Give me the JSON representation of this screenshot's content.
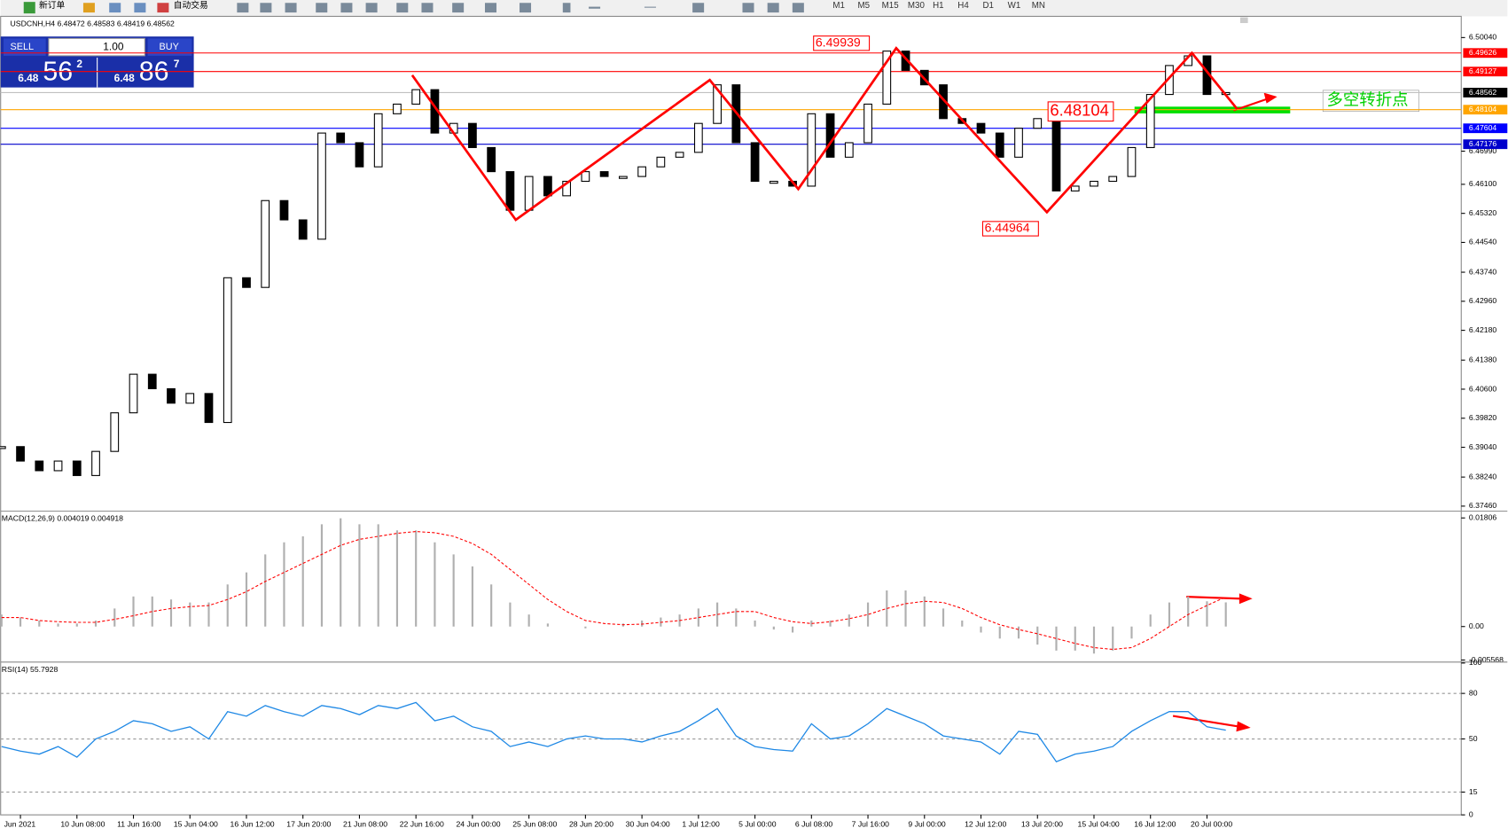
{
  "toolbar": {
    "new_order": "新订单",
    "auto_trading": "自动交易",
    "timeframes": [
      "M1",
      "M5",
      "M15",
      "M30",
      "H1",
      "H4",
      "D1",
      "W1",
      "MN"
    ]
  },
  "trade_panel": {
    "sell": "SELL",
    "lot": "1.00",
    "buy": "BUY",
    "bid_prefix": "6.48",
    "bid_big": "56",
    "bid_sup": "2",
    "ask_prefix": "6.48",
    "ask_big": "86",
    "ask_sup": "7"
  },
  "chart_data": [
    {
      "type": "candlestick",
      "title": "USDCNH,H4 6.48472 6.48583 6.48419 6.48562",
      "categories": [
        null,
        "Jun 2021",
        null,
        null,
        "10 Jun 08:00",
        null,
        null,
        "11 Jun 16:00",
        null,
        null,
        "15 Jun 04:00",
        null,
        null,
        "16 Jun 12:00",
        null,
        null,
        "17 Jun 20:00",
        null,
        null,
        "21 Jun 08:00",
        null,
        null,
        "22 Jun 16:00",
        null,
        null,
        "24 Jun 00:00",
        null,
        null,
        "25 Jun 08:00",
        null,
        null,
        "28 Jun 20:00",
        null,
        null,
        "30 Jun 04:00",
        null,
        null,
        "1 Jul 12:00",
        null,
        null,
        "5 Jul 00:00",
        null,
        null,
        "6 Jul 08:00",
        null,
        null,
        "7 Jul 16:00",
        null,
        null,
        "9 Jul 00:00",
        null,
        null,
        "12 Jul 12:00",
        null,
        null,
        "13 Jul 20:00",
        null,
        null,
        "15 Jul 04:00",
        null,
        null,
        "16 Jul 12:00",
        null,
        null,
        "20 Jul 00:00",
        null
      ],
      "values": [
        6.39058,
        6.3867,
        6.38411,
        6.3867,
        6.38281,
        6.38929,
        6.39965,
        6.41001,
        6.40612,
        6.40224,
        6.40483,
        6.39706,
        6.43591,
        6.43332,
        6.45663,
        6.45145,
        6.44627,
        6.47476,
        6.47217,
        6.46569,
        6.47994,
        6.48253,
        6.48641,
        6.47476,
        6.47735,
        6.47087,
        6.4644,
        6.45404,
        6.4631,
        6.45792,
        6.46181,
        6.4644,
        6.4631,
        6.4631,
        6.46569,
        6.46828,
        6.46958,
        6.47735,
        6.48771,
        6.47217,
        6.46181,
        6.46181,
        6.46051,
        6.47994,
        6.46828,
        6.47217,
        6.48253,
        6.49677,
        6.49159,
        6.48771,
        6.47864,
        6.47735,
        6.47476,
        6.46828,
        6.47605,
        6.47864,
        6.45922,
        6.46051,
        6.46181,
        6.4631,
        6.47087,
        6.48512,
        6.49289,
        6.49548,
        6.48512,
        6.48562
      ],
      "up_color": "#ffffff",
      "down_color": "#000000",
      "ylim": [
        6.37375,
        6.50584
      ],
      "yticks": [
        {
          "value": 6.5004,
          "label": "6.50040"
        },
        {
          "value": 6.4699,
          "label": "6.46990"
        },
        {
          "value": 6.461,
          "label": "6.46100"
        },
        {
          "value": 6.4532,
          "label": "6.45320"
        },
        {
          "value": 6.4454,
          "label": "6.44540"
        },
        {
          "value": 6.4374,
          "label": "6.43740"
        },
        {
          "value": 6.4296,
          "label": "6.42960"
        },
        {
          "value": 6.4218,
          "label": "6.42180"
        },
        {
          "value": 6.4138,
          "label": "6.41380"
        },
        {
          "value": 6.406,
          "label": "6.40600"
        },
        {
          "value": 6.3982,
          "label": "6.39820"
        },
        {
          "value": 6.3904,
          "label": "6.39040"
        },
        {
          "value": 6.3824,
          "label": "6.38240"
        },
        {
          "value": 6.3746,
          "label": "6.37460"
        }
      ],
      "hlines": [
        {
          "value": 6.49626,
          "color": "#ff0000"
        },
        {
          "value": 6.49127,
          "color": "#ff0000"
        },
        {
          "value": 6.48104,
          "color": "#ffa500"
        },
        {
          "value": 6.47604,
          "color": "#0000ff"
        },
        {
          "value": 6.47176,
          "color": "#0000cc"
        }
      ],
      "price_tag": 6.48562,
      "zigzag": {
        "color": "#ff0000",
        "x": [
          21.8,
          27.3,
          37.6,
          42.3,
          47.5,
          55.5,
          63.2,
          65.6
        ],
        "values": [
          6.4903,
          6.45145,
          6.489,
          6.45974,
          6.49755,
          6.45352,
          6.49626,
          6.48122
        ]
      },
      "annotations": [
        "6.49939",
        "6.44964",
        "6.48104",
        "多空转折点"
      ]
    },
    {
      "type": "macd",
      "title": "MACD(12,26,9) 0.004019 0.004918",
      "series": [
        {
          "style": "histogram",
          "color": "#b0b0b0",
          "values": [
            0.002,
            0.0015,
            0.001,
            0.0005,
            0.0005,
            0.001,
            0.003,
            0.005,
            0.005,
            0.0045,
            0.004,
            0.004,
            0.007,
            0.009,
            0.012,
            0.014,
            0.015,
            0.017,
            0.018,
            0.017,
            0.017,
            0.016,
            0.016,
            0.014,
            0.012,
            0.01,
            0.007,
            0.004,
            0.002,
            0.0005,
            0,
            -0.0003,
            0,
            0.0005,
            0.001,
            0.0015,
            0.002,
            0.003,
            0.004,
            0.003,
            0.001,
            -0.0005,
            -0.001,
            0.001,
            0.001,
            0.002,
            0.004,
            0.006,
            0.006,
            0.005,
            0.003,
            0.001,
            -0.001,
            -0.002,
            -0.002,
            -0.003,
            -0.004,
            -0.004,
            -0.0045,
            -0.004,
            -0.002,
            0.002,
            0.004,
            0.005,
            0.0042,
            0.004019
          ]
        },
        {
          "style": "dashed",
          "color": "#ff0000",
          "values": [
            0.0015,
            0.0015,
            0.001,
            0.0008,
            0.0007,
            0.0007,
            0.0012,
            0.0018,
            0.0025,
            0.003,
            0.0033,
            0.0035,
            0.0045,
            0.0058,
            0.0075,
            0.009,
            0.0105,
            0.012,
            0.0135,
            0.0145,
            0.015,
            0.0155,
            0.0158,
            0.0156,
            0.015,
            0.0138,
            0.012,
            0.0095,
            0.007,
            0.0045,
            0.0025,
            0.001,
            0.0005,
            0.0003,
            0.0004,
            0.0007,
            0.001,
            0.0015,
            0.002,
            0.0025,
            0.0025,
            0.0015,
            0.0008,
            0.0005,
            0.0008,
            0.0013,
            0.002,
            0.003,
            0.0038,
            0.0042,
            0.004,
            0.003,
            0.0015,
            0.0003,
            -0.0005,
            -0.0012,
            -0.002,
            -0.0028,
            -0.0035,
            -0.0038,
            -0.0035,
            -0.002,
            0,
            0.002,
            0.0035,
            0.004918
          ]
        }
      ],
      "ylim": [
        -0.00575,
        0.01902
      ],
      "yticks": [
        0.01806,
        {
          "value": 0,
          "label": "0.00"
        },
        -0.005568
      ]
    },
    {
      "type": "line",
      "title": "RSI(14) 55.7928",
      "color": "#1e88e5",
      "values": [
        45,
        42,
        40,
        45,
        38,
        50,
        55,
        62,
        60,
        55,
        58,
        50,
        68,
        65,
        72,
        68,
        65,
        72,
        70,
        66,
        72,
        70,
        74,
        62,
        65,
        58,
        55,
        45,
        48,
        45,
        50,
        52,
        50,
        50,
        48,
        52,
        55,
        62,
        70,
        52,
        45,
        43,
        42,
        60,
        50,
        52,
        60,
        70,
        65,
        60,
        52,
        50,
        48,
        40,
        55,
        53,
        35,
        40,
        42,
        45,
        55,
        62,
        68,
        68,
        58,
        55.7928
      ],
      "ylim": [
        0,
        100
      ],
      "yticks": [
        100,
        80,
        50,
        15,
        0
      ],
      "grid": "dashed"
    }
  ]
}
